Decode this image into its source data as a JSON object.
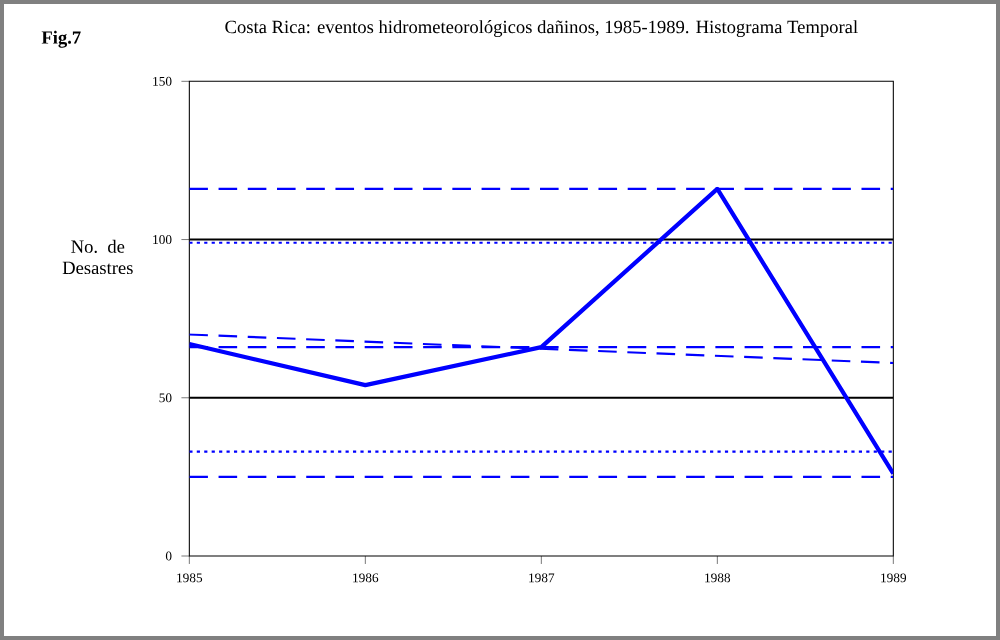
{
  "chart_data": {
    "type": "line",
    "title": "Costa Rica: eventos hidrometeorológicos dañinos, 1985-1989. Histograma Temporal",
    "ylabel": "No. de Desastres",
    "x": [
      1985,
      1986,
      1987,
      1988,
      1989
    ],
    "series": [
      {
        "color": "#0000ff",
        "values": [
          67,
          54,
          66,
          116,
          26
        ]
      },
      {
        "type": "line",
        "color": "#0000ff",
        "x": [
          1985,
          1989
        ],
        "values": [
          70,
          61
        ],
        "line_style": "dashed"
      }
    ],
    "xlim": [
      1985,
      1989
    ],
    "xticks": [
      1985,
      1986,
      1987,
      1988,
      1989
    ],
    "ylim": [
      0,
      150
    ],
    "yticks": [
      0,
      50,
      100,
      150
    ],
    "ref_lines": [
      {
        "axis": "y",
        "value": 116,
        "color": "#0000ff",
        "line_style": "dashed"
      },
      {
        "axis": "y",
        "value": 99,
        "color": "#0000ff",
        "line_style": "dotted"
      },
      {
        "axis": "y",
        "value": 100,
        "color": "#000000",
        "line_style": "solid"
      },
      {
        "axis": "y",
        "value": 66,
        "color": "#0000ff",
        "line_style": "dashed"
      },
      {
        "axis": "y",
        "value": 50,
        "color": "#000000",
        "line_style": "solid"
      },
      {
        "axis": "y",
        "value": 33,
        "color": "#0000ff",
        "line_style": "dotted"
      },
      {
        "axis": "y",
        "value": 25,
        "color": "#0000ff",
        "line_style": "dashed"
      }
    ],
    "grid": false,
    "legend": false,
    "marker": "none",
    "annotations": [
      "Fig.7"
    ]
  }
}
